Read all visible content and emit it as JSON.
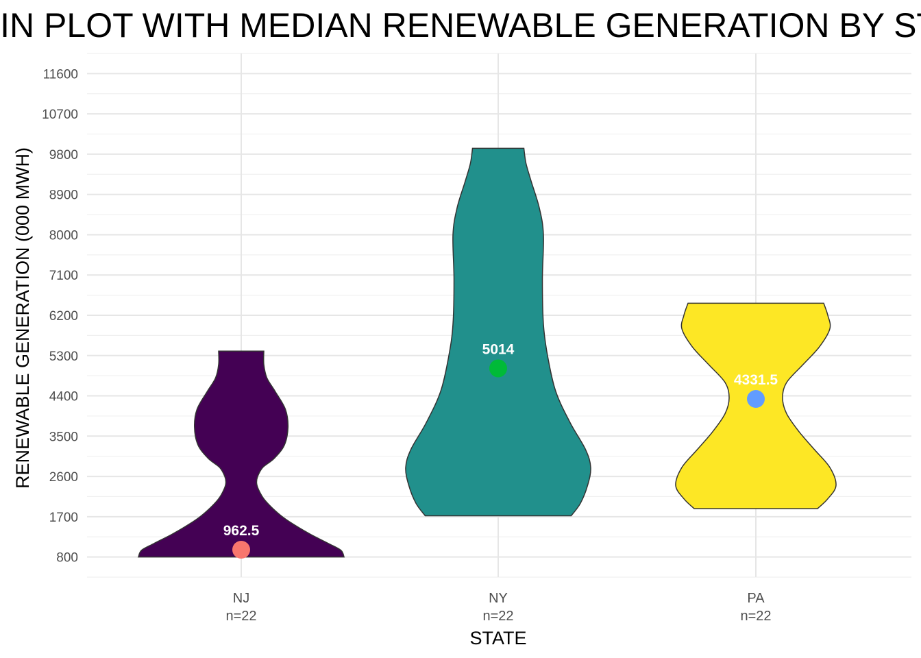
{
  "chart_data": {
    "type": "violin",
    "title": "VIOLIN PLOT WITH MEDIAN RENEWABLE GENERATION BY STATE",
    "xlabel": "STATE",
    "ylabel": "RENEWABLE GENERATION (000 MWH)",
    "ylim": [
      350,
      12050
    ],
    "yticks": [
      800,
      1700,
      2600,
      3500,
      4400,
      5300,
      6200,
      7100,
      8000,
      8900,
      9800,
      10700,
      11600
    ],
    "grid": true,
    "legend": "none",
    "categories": [
      {
        "label": "NJ",
        "count_label": "n=22",
        "fill": "#440154",
        "median": 962.5,
        "median_label": "962.5",
        "median_color": "#F8766D",
        "min": 800,
        "max": 5400,
        "profile": [
          [
            800,
            1.0
          ],
          [
            950,
            0.97
          ],
          [
            1100,
            0.85
          ],
          [
            1300,
            0.68
          ],
          [
            1500,
            0.53
          ],
          [
            1700,
            0.4
          ],
          [
            1900,
            0.3
          ],
          [
            2100,
            0.22
          ],
          [
            2300,
            0.17
          ],
          [
            2450,
            0.15
          ],
          [
            2600,
            0.16
          ],
          [
            2800,
            0.21
          ],
          [
            3000,
            0.32
          ],
          [
            3300,
            0.42
          ],
          [
            3700,
            0.455
          ],
          [
            4100,
            0.43
          ],
          [
            4500,
            0.33
          ],
          [
            4800,
            0.25
          ],
          [
            5100,
            0.22
          ],
          [
            5400,
            0.22
          ]
        ]
      },
      {
        "label": "NY",
        "count_label": "n=22",
        "fill": "#21908C",
        "median": 5014,
        "median_label": "5014",
        "median_color": "#00BA38",
        "min": 1720,
        "max": 9930,
        "profile": [
          [
            1720,
            0.71
          ],
          [
            2000,
            0.8
          ],
          [
            2400,
            0.87
          ],
          [
            2800,
            0.9
          ],
          [
            3200,
            0.85
          ],
          [
            3800,
            0.7
          ],
          [
            4500,
            0.56
          ],
          [
            5300,
            0.48
          ],
          [
            6000,
            0.44
          ],
          [
            7000,
            0.43
          ],
          [
            8000,
            0.44
          ],
          [
            8600,
            0.4
          ],
          [
            9200,
            0.32
          ],
          [
            9600,
            0.27
          ],
          [
            9930,
            0.25
          ]
        ]
      },
      {
        "label": "PA",
        "count_label": "n=22",
        "fill": "#FDE725",
        "median": 4331.5,
        "median_label": "4331.5",
        "median_color": "#619CFF",
        "min": 1880,
        "max": 6470,
        "profile": [
          [
            1880,
            0.6
          ],
          [
            2100,
            0.7
          ],
          [
            2400,
            0.78
          ],
          [
            2800,
            0.72
          ],
          [
            3200,
            0.57
          ],
          [
            3600,
            0.42
          ],
          [
            4000,
            0.3
          ],
          [
            4350,
            0.26
          ],
          [
            4700,
            0.3
          ],
          [
            5100,
            0.46
          ],
          [
            5500,
            0.62
          ],
          [
            5900,
            0.72
          ],
          [
            6200,
            0.7
          ],
          [
            6470,
            0.66
          ]
        ]
      }
    ]
  }
}
